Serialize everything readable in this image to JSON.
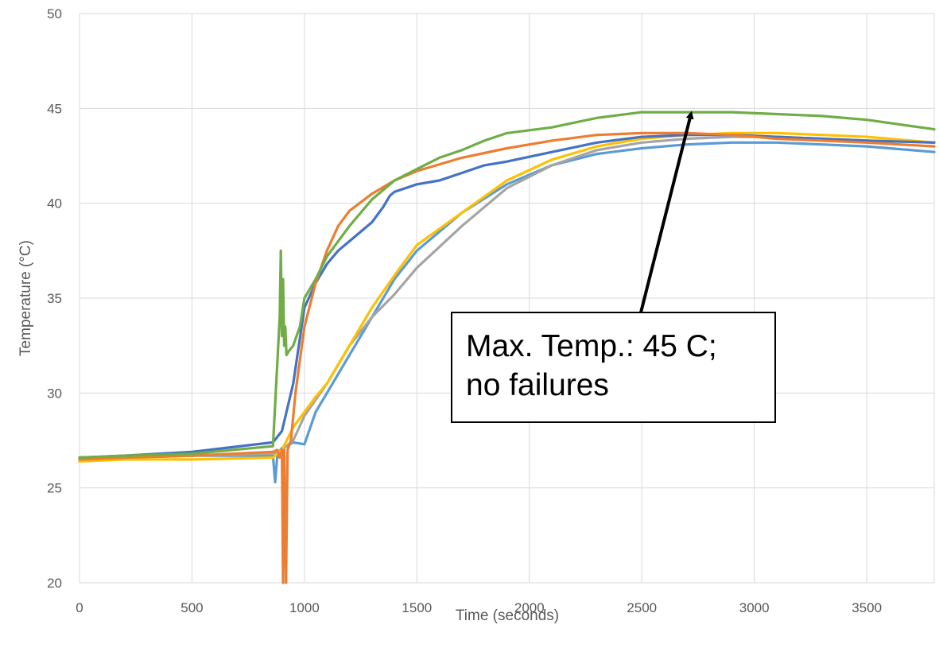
{
  "chart_data": {
    "type": "line",
    "title": "",
    "xlabel": "Time (seconds)",
    "ylabel": "Temperature (°C)",
    "xlim": [
      0,
      3800
    ],
    "ylim": [
      20,
      50
    ],
    "xticks": [
      "0",
      "500",
      "1000",
      "1500",
      "2000",
      "2500",
      "3000",
      "3500"
    ],
    "yticks": [
      "20",
      "25",
      "30",
      "35",
      "40",
      "45",
      "50"
    ],
    "grid": true,
    "legend": "none",
    "annotation": {
      "line1": "Max. Temp.: 45 C;",
      "line2": "no failures",
      "arrow_to": [
        2700,
        45
      ]
    },
    "series": [
      {
        "color": "#5b9bd5",
        "x": [
          0,
          200,
          500,
          860,
          870,
          880,
          900,
          950,
          1000,
          1050,
          1100,
          1200,
          1300,
          1400,
          1500,
          1700,
          1900,
          2100,
          2300,
          2500,
          2700,
          2900,
          3100,
          3300,
          3500,
          3800
        ],
        "y": [
          26.6,
          26.6,
          26.7,
          26.7,
          25.3,
          26.8,
          27.1,
          27.4,
          27.3,
          29.0,
          30.0,
          32.0,
          34.0,
          36.0,
          37.5,
          39.5,
          41.0,
          42.0,
          42.6,
          42.9,
          43.1,
          43.2,
          43.2,
          43.1,
          43.0,
          42.7
        ]
      },
      {
        "color": "#a5a5a5",
        "x": [
          0,
          200,
          500,
          860,
          880,
          900,
          950,
          1000,
          1100,
          1200,
          1300,
          1400,
          1500,
          1700,
          1900,
          2100,
          2300,
          2500,
          2700,
          2900,
          3100,
          3300,
          3500,
          3800
        ],
        "y": [
          26.5,
          26.6,
          26.7,
          26.8,
          26.9,
          27.0,
          27.5,
          28.8,
          30.5,
          32.5,
          34.0,
          35.2,
          36.6,
          38.8,
          40.8,
          42.0,
          42.8,
          43.2,
          43.4,
          43.5,
          43.5,
          43.4,
          43.3,
          43.2
        ]
      },
      {
        "color": "#ffc000",
        "x": [
          0,
          200,
          500,
          860,
          880,
          900,
          950,
          1000,
          1050,
          1100,
          1200,
          1300,
          1400,
          1500,
          1700,
          1900,
          2100,
          2300,
          2500,
          2700,
          2900,
          3100,
          3300,
          3500,
          3800
        ],
        "y": [
          26.4,
          26.5,
          26.5,
          26.6,
          26.8,
          27.0,
          28.2,
          29.0,
          29.8,
          30.5,
          32.5,
          34.5,
          36.2,
          37.8,
          39.5,
          41.2,
          42.3,
          43.0,
          43.4,
          43.6,
          43.7,
          43.7,
          43.6,
          43.5,
          43.2
        ]
      },
      {
        "color": "#4472c4",
        "x": [
          0,
          200,
          500,
          860,
          900,
          950,
          1000,
          1050,
          1100,
          1150,
          1200,
          1300,
          1350,
          1380,
          1400,
          1500,
          1600,
          1700,
          1800,
          1900,
          2100,
          2300,
          2500,
          2700,
          2900,
          3100,
          3300,
          3500,
          3800
        ],
        "y": [
          26.6,
          26.7,
          26.9,
          27.4,
          28.0,
          30.5,
          34.5,
          35.8,
          36.8,
          37.5,
          38.0,
          39.0,
          39.8,
          40.4,
          40.6,
          41.0,
          41.2,
          41.6,
          42.0,
          42.2,
          42.7,
          43.2,
          43.5,
          43.6,
          43.6,
          43.5,
          43.4,
          43.3,
          43.2
        ]
      },
      {
        "color": "#ed7d31",
        "x": [
          0,
          200,
          500,
          860,
          880,
          890,
          900,
          905,
          910,
          918,
          925,
          940,
          960,
          1000,
          1050,
          1100,
          1150,
          1200,
          1300,
          1400,
          1500,
          1700,
          1900,
          2100,
          2300,
          2500,
          2700,
          2900,
          3100,
          3300,
          3500,
          3800
        ],
        "y": [
          26.5,
          26.6,
          26.7,
          26.9,
          27.0,
          26.6,
          27.0,
          20.0,
          27.0,
          20.0,
          27.0,
          27.5,
          30.0,
          33.5,
          35.8,
          37.5,
          38.8,
          39.6,
          40.5,
          41.2,
          41.7,
          42.4,
          42.9,
          43.3,
          43.6,
          43.7,
          43.7,
          43.6,
          43.4,
          43.3,
          43.2,
          43.0
        ]
      },
      {
        "color": "#70ad47",
        "x": [
          0,
          200,
          500,
          860,
          890,
          895,
          900,
          905,
          910,
          915,
          920,
          930,
          950,
          980,
          1000,
          1050,
          1100,
          1200,
          1300,
          1400,
          1500,
          1600,
          1700,
          1800,
          1900,
          2100,
          2300,
          2500,
          2700,
          2900,
          3100,
          3300,
          3500,
          3800
        ],
        "y": [
          26.6,
          26.7,
          26.8,
          27.2,
          34.0,
          37.5,
          33.0,
          36.0,
          32.5,
          33.5,
          32.0,
          32.2,
          32.5,
          33.5,
          35.0,
          36.0,
          37.2,
          38.8,
          40.2,
          41.2,
          41.8,
          42.4,
          42.8,
          43.3,
          43.7,
          44.0,
          44.5,
          44.8,
          44.8,
          44.8,
          44.7,
          44.6,
          44.4,
          43.9
        ]
      }
    ]
  }
}
